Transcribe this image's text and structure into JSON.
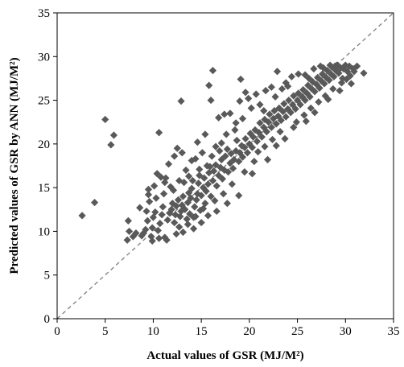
{
  "chart_data": {
    "type": "scatter",
    "title": "",
    "xlabel": "Actual values of GSR (MJ/M²)",
    "ylabel": "Predicted values of GSR by ANN (MJ/M²)",
    "xlim": [
      0,
      35
    ],
    "ylim": [
      0,
      35
    ],
    "xticks": [
      0,
      5,
      10,
      15,
      20,
      25,
      30,
      35
    ],
    "yticks": [
      0,
      5,
      10,
      15,
      20,
      25,
      30,
      35
    ],
    "grid": false,
    "legend": "none",
    "reference_line": {
      "kind": "y=x",
      "style": "dashed",
      "color": "#7f7f7f"
    },
    "marker": {
      "shape": "diamond",
      "color": "#595959"
    },
    "points": [
      [
        2.6,
        11.8
      ],
      [
        3.9,
        13.3
      ],
      [
        5.0,
        22.8
      ],
      [
        5.6,
        19.9
      ],
      [
        5.9,
        21.0
      ],
      [
        7.3,
        9.0
      ],
      [
        7.5,
        10.0
      ],
      [
        7.4,
        11.2
      ],
      [
        7.9,
        9.4
      ],
      [
        8.2,
        9.8
      ],
      [
        8.6,
        12.7
      ],
      [
        8.8,
        9.5
      ],
      [
        9.0,
        9.8
      ],
      [
        9.2,
        10.2
      ],
      [
        9.4,
        11.2
      ],
      [
        9.3,
        12.3
      ],
      [
        9.6,
        13.4
      ],
      [
        9.5,
        14.2
      ],
      [
        9.8,
        9.4
      ],
      [
        9.9,
        10.4
      ],
      [
        10.0,
        11.6
      ],
      [
        10.2,
        12.2
      ],
      [
        10.3,
        13.8
      ],
      [
        10.1,
        15.2
      ],
      [
        10.4,
        16.6
      ],
      [
        10.5,
        10.1
      ],
      [
        10.7,
        10.9
      ],
      [
        10.9,
        11.9
      ],
      [
        11.0,
        12.8
      ],
      [
        11.1,
        14.3
      ],
      [
        11.2,
        15.6
      ],
      [
        11.3,
        16.1
      ],
      [
        11.4,
        9.0
      ],
      [
        11.5,
        11.3
      ],
      [
        11.7,
        12.1
      ],
      [
        11.9,
        12.5
      ],
      [
        12.0,
        13.2
      ],
      [
        12.1,
        14.7
      ],
      [
        12.2,
        11.0
      ],
      [
        12.3,
        11.9
      ],
      [
        12.4,
        12.9
      ],
      [
        12.6,
        13.6
      ],
      [
        12.7,
        10.5
      ],
      [
        12.8,
        11.7
      ],
      [
        12.9,
        12.3
      ],
      [
        13.0,
        13.0
      ],
      [
        13.1,
        14.0
      ],
      [
        13.2,
        15.6
      ],
      [
        13.3,
        12.5
      ],
      [
        13.5,
        11.4
      ],
      [
        13.6,
        13.3
      ],
      [
        13.7,
        14.4
      ],
      [
        13.8,
        12.0
      ],
      [
        13.9,
        13.8
      ],
      [
        14.0,
        14.9
      ],
      [
        14.1,
        15.8
      ],
      [
        14.2,
        11.6
      ],
      [
        14.3,
        12.8
      ],
      [
        14.5,
        13.6
      ],
      [
        14.6,
        14.3
      ],
      [
        14.7,
        15.5
      ],
      [
        14.8,
        16.4
      ],
      [
        14.9,
        12.4
      ],
      [
        15.0,
        14.1
      ],
      [
        15.2,
        15.0
      ],
      [
        15.3,
        16.1
      ],
      [
        15.4,
        13.2
      ],
      [
        15.5,
        14.6
      ],
      [
        15.7,
        15.4
      ],
      [
        15.8,
        16.7
      ],
      [
        15.9,
        17.4
      ],
      [
        16.0,
        14.0
      ],
      [
        16.2,
        15.8
      ],
      [
        16.3,
        16.9
      ],
      [
        16.5,
        17.6
      ],
      [
        16.6,
        15.2
      ],
      [
        16.8,
        16.4
      ],
      [
        17.0,
        17.3
      ],
      [
        17.1,
        18.2
      ],
      [
        17.2,
        16.0
      ],
      [
        17.4,
        17.0
      ],
      [
        17.5,
        18.6
      ],
      [
        17.7,
        19.4
      ],
      [
        17.8,
        16.8
      ],
      [
        18.0,
        17.8
      ],
      [
        18.1,
        18.9
      ],
      [
        18.3,
        17.2
      ],
      [
        18.4,
        18.2
      ],
      [
        18.6,
        19.2
      ],
      [
        18.7,
        20.4
      ],
      [
        18.9,
        18.0
      ],
      [
        19.0,
        19.0
      ],
      [
        19.2,
        19.8
      ],
      [
        19.3,
        18.5
      ],
      [
        19.5,
        19.6
      ],
      [
        19.6,
        20.6
      ],
      [
        19.8,
        19.0
      ],
      [
        20.0,
        20.0
      ],
      [
        20.1,
        21.2
      ],
      [
        20.3,
        19.6
      ],
      [
        20.4,
        20.8
      ],
      [
        20.6,
        21.6
      ],
      [
        20.8,
        20.3
      ],
      [
        21.0,
        21.3
      ],
      [
        21.1,
        22.4
      ],
      [
        21.3,
        20.8
      ],
      [
        21.5,
        21.9
      ],
      [
        21.6,
        22.8
      ],
      [
        21.8,
        21.4
      ],
      [
        22.0,
        22.5
      ],
      [
        22.1,
        23.4
      ],
      [
        22.3,
        21.9
      ],
      [
        22.5,
        22.9
      ],
      [
        22.6,
        23.8
      ],
      [
        22.8,
        22.3
      ],
      [
        23.0,
        23.2
      ],
      [
        23.1,
        24.1
      ],
      [
        23.3,
        22.7
      ],
      [
        23.5,
        23.7
      ],
      [
        23.6,
        24.6
      ],
      [
        23.8,
        23.1
      ],
      [
        24.0,
        24.0
      ],
      [
        24.1,
        25.0
      ],
      [
        24.3,
        23.6
      ],
      [
        24.5,
        24.5
      ],
      [
        24.6,
        25.5
      ],
      [
        24.8,
        24.0
      ],
      [
        25.0,
        25.0
      ],
      [
        25.1,
        25.8
      ],
      [
        25.3,
        24.5
      ],
      [
        25.5,
        25.4
      ],
      [
        25.6,
        26.2
      ],
      [
        25.8,
        25.0
      ],
      [
        26.0,
        25.8
      ],
      [
        26.1,
        26.7
      ],
      [
        26.3,
        25.4
      ],
      [
        26.5,
        26.3
      ],
      [
        26.6,
        27.1
      ],
      [
        26.8,
        26.0
      ],
      [
        27.0,
        26.8
      ],
      [
        27.1,
        27.6
      ],
      [
        27.3,
        26.4
      ],
      [
        27.5,
        27.2
      ],
      [
        27.6,
        28.0
      ],
      [
        27.8,
        26.9
      ],
      [
        28.0,
        27.6
      ],
      [
        28.1,
        28.4
      ],
      [
        28.3,
        27.3
      ],
      [
        28.5,
        28.0
      ],
      [
        28.6,
        28.8
      ],
      [
        28.8,
        27.7
      ],
      [
        29.0,
        28.4
      ],
      [
        29.1,
        29.0
      ],
      [
        29.3,
        28.1
      ],
      [
        29.5,
        28.7
      ],
      [
        29.7,
        27.5
      ],
      [
        29.9,
        28.9
      ],
      [
        30.2,
        28.3
      ],
      [
        30.5,
        27.8
      ],
      [
        30.8,
        28.6
      ],
      [
        31.2,
        28.9
      ],
      [
        31.9,
        28.1
      ],
      [
        16.2,
        28.4
      ],
      [
        15.8,
        26.7
      ],
      [
        16.0,
        25.0
      ],
      [
        12.9,
        24.9
      ],
      [
        10.6,
        21.3
      ],
      [
        13.0,
        19.0
      ],
      [
        12.2,
        18.6
      ],
      [
        15.4,
        21.1
      ],
      [
        16.5,
        19.7
      ],
      [
        19.1,
        27.4
      ],
      [
        19.6,
        25.9
      ],
      [
        19.0,
        24.9
      ],
      [
        19.9,
        25.2
      ],
      [
        20.7,
        25.7
      ],
      [
        21.1,
        24.5
      ],
      [
        22.9,
        28.3
      ],
      [
        22.3,
        26.5
      ],
      [
        23.4,
        26.3
      ],
      [
        21.7,
        26.1
      ],
      [
        23.8,
        27.0
      ],
      [
        16.8,
        23.0
      ],
      [
        18.6,
        22.4
      ],
      [
        17.6,
        21.1
      ],
      [
        19.3,
        22.9
      ],
      [
        21.5,
        23.8
      ],
      [
        22.7,
        25.4
      ],
      [
        14.0,
        18.1
      ],
      [
        14.6,
        20.2
      ],
      [
        16.9,
        19.2
      ],
      [
        17.4,
        23.4
      ],
      [
        18.0,
        23.5
      ],
      [
        20.2,
        24.1
      ],
      [
        24.4,
        27.7
      ],
      [
        25.1,
        28.0
      ],
      [
        24.0,
        26.6
      ],
      [
        9.5,
        14.8
      ],
      [
        10.8,
        16.2
      ],
      [
        11.6,
        17.7
      ],
      [
        12.5,
        19.5
      ],
      [
        13.4,
        17.0
      ],
      [
        14.4,
        18.3
      ],
      [
        15.1,
        19.0
      ],
      [
        18.5,
        21.6
      ],
      [
        17.1,
        20.1
      ],
      [
        16.1,
        18.6
      ],
      [
        15.6,
        17.5
      ],
      [
        14.8,
        17.1
      ],
      [
        13.7,
        16.3
      ],
      [
        12.7,
        15.8
      ],
      [
        11.8,
        15.1
      ],
      [
        13.1,
        9.9
      ],
      [
        14.2,
        10.3
      ],
      [
        15.0,
        11.0
      ],
      [
        15.7,
        11.8
      ],
      [
        16.6,
        12.3
      ],
      [
        17.7,
        13.2
      ],
      [
        18.9,
        14.1
      ],
      [
        20.3,
        16.6
      ],
      [
        21.9,
        18.2
      ],
      [
        22.8,
        19.8
      ],
      [
        23.7,
        20.6
      ],
      [
        24.6,
        21.9
      ],
      [
        25.9,
        22.6
      ],
      [
        26.8,
        23.6
      ],
      [
        28.2,
        25.1
      ],
      [
        29.4,
        26.1
      ],
      [
        30.6,
        26.9
      ],
      [
        20.5,
        18.0
      ],
      [
        19.5,
        16.8
      ],
      [
        18.2,
        15.4
      ],
      [
        17.3,
        14.3
      ],
      [
        16.4,
        13.5
      ],
      [
        15.2,
        12.6
      ],
      [
        14.4,
        11.7
      ],
      [
        13.6,
        10.8
      ],
      [
        12.4,
        9.7
      ],
      [
        11.2,
        9.3
      ],
      [
        10.6,
        9.2
      ],
      [
        9.9,
        8.9
      ],
      [
        24.9,
        22.5
      ],
      [
        25.7,
        23.3
      ],
      [
        26.4,
        24.1
      ],
      [
        27.2,
        24.8
      ],
      [
        27.9,
        25.5
      ],
      [
        28.7,
        26.3
      ],
      [
        29.6,
        27.0
      ],
      [
        30.1,
        27.4
      ],
      [
        23.2,
        21.4
      ],
      [
        22.4,
        20.5
      ],
      [
        21.6,
        19.7
      ],
      [
        20.9,
        19.1
      ],
      [
        26.7,
        28.6
      ],
      [
        27.4,
        28.9
      ],
      [
        28.4,
        29.0
      ],
      [
        29.2,
        29.0
      ],
      [
        30.0,
        29.0
      ],
      [
        30.4,
        28.9
      ],
      [
        25.8,
        27.9
      ],
      [
        26.2,
        27.5
      ],
      [
        27.7,
        28.7
      ],
      [
        28.9,
        28.9
      ],
      [
        29.8,
        28.6
      ],
      [
        30.9,
        28.3
      ]
    ]
  }
}
